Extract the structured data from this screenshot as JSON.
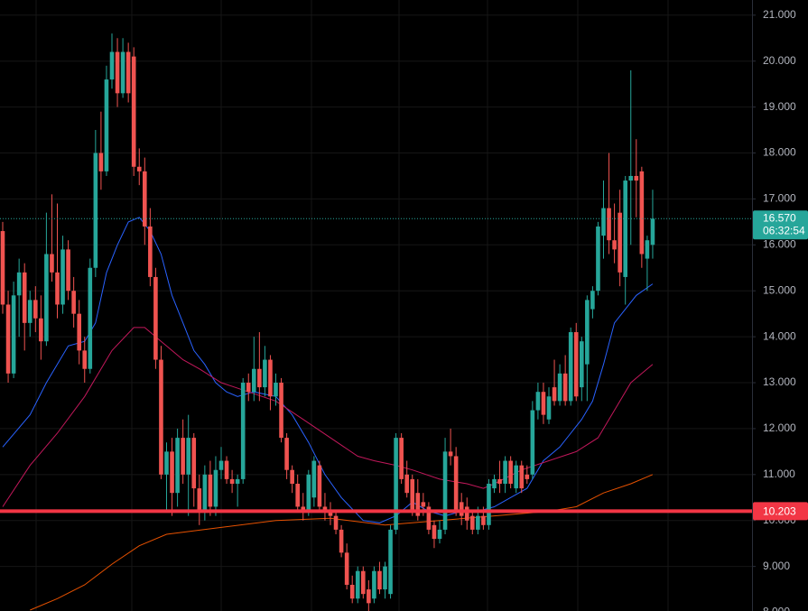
{
  "chart_data": {
    "type": "candlestick",
    "up_color": "#26a69a",
    "down_color": "#ef5350",
    "open": [
      16.3,
      14.7,
      13.2,
      14.9,
      15.4,
      14.3,
      14.8,
      14.4,
      13.9,
      15.8,
      15.4,
      14.7,
      15.9,
      15.0,
      14.5,
      13.7,
      13.3,
      15.5,
      18.0,
      17.6,
      19.6,
      20.2,
      19.3,
      20.2,
      20.1,
      17.7,
      17.6,
      16.4,
      15.3,
      13.5,
      11.0,
      11.5,
      10.6,
      11.8,
      11.0,
      11.8,
      10.7,
      10.2,
      11.0,
      10.3,
      11.1,
      11.3,
      10.9,
      10.8,
      10.9,
      13.0,
      12.8,
      13.3,
      12.9,
      13.5,
      12.7,
      13.0,
      11.8,
      11.1,
      10.8,
      10.3,
      10.2,
      10.5,
      11.2,
      10.3,
      10.2,
      10.1,
      9.8,
      9.3,
      8.6,
      8.3,
      8.9,
      8.5,
      8.3,
      8.9,
      8.5,
      8.4,
      9.8,
      11.8,
      11.0,
      10.9,
      10.6,
      10.4,
      10.3,
      9.9,
      9.6,
      9.8,
      11.5,
      11.4,
      10.4,
      10.3,
      10.1,
      9.8,
      10.1,
      9.9,
      10.7,
      10.9,
      10.8,
      11.3,
      10.7,
      11.2,
      11.0,
      11.0,
      12.4,
      12.8,
      12.2,
      12.9,
      12.6,
      13.2,
      12.6,
      14.1,
      12.9,
      13.4,
      14.6,
      15.0,
      16.2,
      16.8,
      16.1,
      16.7,
      15.3,
      17.4,
      17.5,
      17.6,
      15.7,
      16.0
    ],
    "high": [
      16.5,
      15.0,
      15.2,
      15.7,
      15.6,
      15.0,
      15.1,
      14.9,
      16.7,
      17.1,
      16.9,
      16.2,
      16.1,
      15.3,
      14.8,
      14.0,
      15.7,
      18.5,
      18.9,
      19.9,
      20.6,
      20.5,
      20.5,
      20.4,
      20.3,
      18.1,
      17.9,
      16.8,
      15.5,
      13.8,
      11.7,
      11.8,
      12.0,
      12.2,
      12.3,
      11.9,
      11.0,
      11.2,
      11.3,
      11.4,
      11.6,
      11.4,
      11.1,
      11.0,
      13.1,
      13.2,
      14.0,
      14.1,
      13.8,
      13.6,
      13.2,
      13.1,
      11.9,
      11.2,
      11.0,
      10.6,
      11.1,
      11.4,
      11.3,
      10.6,
      10.4,
      10.2,
      9.9,
      9.5,
      8.8,
      9.0,
      9.0,
      8.7,
      9.0,
      9.1,
      9.1,
      9.9,
      11.9,
      11.9,
      11.3,
      11.0,
      10.9,
      10.6,
      10.4,
      10.0,
      10.0,
      11.8,
      12.0,
      11.6,
      10.6,
      10.5,
      10.2,
      10.3,
      10.3,
      10.9,
      11.0,
      11.3,
      11.4,
      11.4,
      11.3,
      11.3,
      11.2,
      12.6,
      13.0,
      13.0,
      12.9,
      13.5,
      13.4,
      13.6,
      14.2,
      14.3,
      14.0,
      14.9,
      15.1,
      16.5,
      17.4,
      18.0,
      16.9,
      17.2,
      17.5,
      19.8,
      18.3,
      17.7,
      16.2,
      17.2
    ],
    "low": [
      14.5,
      13.0,
      13.1,
      14.0,
      13.7,
      14.0,
      14.1,
      13.5,
      13.8,
      15.2,
      14.4,
      14.5,
      14.8,
      14.2,
      13.4,
      13.0,
      13.2,
      15.3,
      17.2,
      17.5,
      19.4,
      19.0,
      19.2,
      19.1,
      17.5,
      17.3,
      16.0,
      15.1,
      13.3,
      10.9,
      10.2,
      10.1,
      10.3,
      10.8,
      10.1,
      10.3,
      9.9,
      10.0,
      10.1,
      10.1,
      10.9,
      10.8,
      10.6,
      10.3,
      10.8,
      12.6,
      12.6,
      12.6,
      12.7,
      12.4,
      12.5,
      11.7,
      10.9,
      10.6,
      10.2,
      10.0,
      10.1,
      10.3,
      10.2,
      10.0,
      9.9,
      9.7,
      9.2,
      8.5,
      8.2,
      8.2,
      8.3,
      8.0,
      8.2,
      8.4,
      8.3,
      8.3,
      9.7,
      10.8,
      10.5,
      10.1,
      10.0,
      10.1,
      9.7,
      9.4,
      9.5,
      9.7,
      11.2,
      10.1,
      9.9,
      9.8,
      9.7,
      9.7,
      9.8,
      9.8,
      10.6,
      10.6,
      10.6,
      10.7,
      10.6,
      10.6,
      10.8,
      10.9,
      12.2,
      12.1,
      12.1,
      12.5,
      12.5,
      12.5,
      12.5,
      12.6,
      12.6,
      12.6,
      14.4,
      14.9,
      15.7,
      15.8,
      15.6,
      15.1,
      14.7,
      16.0,
      16.6,
      15.5,
      15.0,
      15.7
    ],
    "close": [
      14.7,
      13.2,
      14.9,
      15.4,
      14.3,
      14.8,
      14.4,
      13.9,
      15.8,
      15.4,
      14.7,
      15.9,
      15.0,
      14.5,
      13.7,
      13.3,
      15.5,
      18.0,
      17.6,
      19.6,
      20.2,
      19.3,
      20.2,
      19.3,
      17.7,
      17.6,
      16.4,
      15.3,
      13.5,
      11.0,
      11.5,
      10.6,
      11.8,
      11.0,
      11.8,
      10.7,
      10.2,
      11.0,
      10.3,
      11.1,
      11.3,
      10.9,
      10.8,
      10.9,
      13.0,
      12.8,
      13.3,
      12.9,
      13.5,
      12.7,
      13.0,
      11.8,
      11.1,
      10.8,
      10.3,
      10.2,
      11.0,
      11.3,
      10.3,
      10.2,
      10.1,
      9.8,
      9.3,
      8.6,
      8.3,
      8.9,
      8.4,
      8.2,
      8.9,
      8.5,
      9.0,
      9.8,
      11.8,
      10.9,
      10.6,
      10.2,
      10.1,
      10.3,
      9.8,
      9.6,
      9.8,
      11.5,
      11.4,
      10.2,
      10.1,
      10.0,
      9.8,
      10.1,
      9.9,
      10.8,
      10.9,
      10.8,
      11.3,
      10.8,
      11.2,
      10.7,
      10.9,
      12.4,
      12.8,
      12.3,
      12.7,
      12.6,
      13.2,
      12.6,
      14.1,
      12.7,
      13.9,
      14.8,
      15.0,
      16.4,
      16.8,
      16.1,
      15.9,
      15.4,
      17.4,
      17.5,
      17.4,
      15.8,
      16.1,
      16.57
    ],
    "lines": [
      {
        "color": "#2962ff",
        "x": [
          0,
          5,
          8,
          12,
          15,
          17,
          19,
          21,
          23,
          25,
          27,
          29,
          31,
          33,
          35,
          37,
          39,
          41,
          43,
          46,
          50,
          53,
          56,
          59,
          62,
          66,
          69,
          72,
          75,
          78,
          81,
          84,
          87,
          90,
          93,
          96,
          99,
          102,
          104,
          106,
          108,
          110,
          112,
          114,
          116,
          119
        ],
        "values": [
          11.6,
          12.3,
          13.0,
          13.8,
          13.9,
          14.3,
          15.4,
          16.0,
          16.5,
          16.6,
          16.3,
          15.8,
          14.9,
          14.3,
          13.7,
          13.4,
          13.0,
          12.8,
          12.7,
          12.8,
          12.7,
          12.3,
          11.7,
          11.0,
          10.5,
          10.0,
          9.95,
          10.1,
          10.4,
          10.2,
          10.1,
          10.2,
          10.2,
          10.3,
          10.5,
          10.7,
          11.3,
          11.6,
          11.9,
          12.2,
          12.6,
          13.4,
          14.3,
          14.6,
          14.9,
          15.15
        ]
      },
      {
        "color": "#c2185b",
        "x": [
          0,
          5,
          10,
          15,
          20,
          24,
          26,
          29,
          33,
          36,
          40,
          45,
          50,
          55,
          60,
          65,
          68,
          72,
          75,
          80,
          85,
          88,
          90,
          95,
          100,
          105,
          109,
          112,
          115,
          117,
          119
        ],
        "values": [
          10.3,
          11.2,
          11.9,
          12.7,
          13.7,
          14.2,
          14.2,
          13.9,
          13.5,
          13.3,
          13.0,
          12.8,
          12.6,
          12.2,
          11.8,
          11.4,
          11.3,
          11.2,
          11.1,
          10.9,
          10.8,
          10.7,
          10.8,
          11.1,
          11.3,
          11.5,
          11.8,
          12.4,
          13.0,
          13.2,
          13.4
        ]
      },
      {
        "color": "#e65100",
        "x": [
          5,
          10,
          15,
          20,
          25,
          30,
          40,
          50,
          60,
          70,
          80,
          90,
          100,
          105,
          110,
          115,
          119
        ],
        "values": [
          8.05,
          8.3,
          8.6,
          9.05,
          9.45,
          9.7,
          9.85,
          10.0,
          10.05,
          9.9,
          10.0,
          10.1,
          10.2,
          10.3,
          10.6,
          10.8,
          11.0
        ]
      }
    ],
    "price_line": 10.203,
    "price_line_color": "#f23645",
    "last_price": {
      "value": 16.57,
      "label": "16.570"
    },
    "countdown": "06:32:54",
    "ylim": [
      8.03,
      21.33
    ],
    "yticks": [
      {
        "value": 8,
        "label": "8.000"
      },
      {
        "value": 9,
        "label": "9.000"
      },
      {
        "value": 10,
        "label": "10.000"
      },
      {
        "value": 11,
        "label": "11.000"
      },
      {
        "value": 12,
        "label": "12.000"
      },
      {
        "value": 13,
        "label": "13.000"
      },
      {
        "value": 14,
        "label": "14.000"
      },
      {
        "value": 15,
        "label": "15.000"
      },
      {
        "value": 16,
        "label": "16.000"
      },
      {
        "value": 17,
        "label": "17.000"
      },
      {
        "value": 18,
        "label": "18.000"
      },
      {
        "value": 19,
        "label": "19.000"
      },
      {
        "value": 20,
        "label": "20.000"
      },
      {
        "value": 21,
        "label": "21.000"
      }
    ],
    "grid": true
  }
}
